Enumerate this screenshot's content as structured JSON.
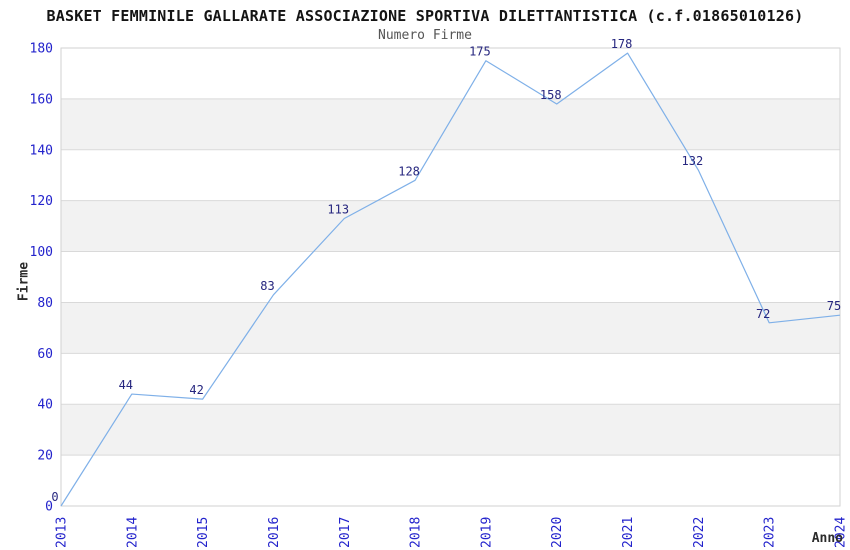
{
  "chart_data": {
    "type": "line",
    "title": "BASKET FEMMINILE GALLARATE ASSOCIAZIONE SPORTIVA DILETTANTISTICA (c.f.01865010126)",
    "subtitle": "Numero Firme",
    "xlabel": "Anno",
    "ylabel": "Firme",
    "categories": [
      "2013",
      "2014",
      "2015",
      "2016",
      "2017",
      "2018",
      "2019",
      "2020",
      "2021",
      "2022",
      "2023",
      "2024"
    ],
    "values": [
      0,
      44,
      42,
      83,
      113,
      128,
      175,
      158,
      178,
      132,
      72,
      75
    ],
    "data_labels": [
      "0",
      "44",
      "42",
      "83",
      "113",
      "128",
      "175",
      "158",
      "178",
      "132",
      "72",
      "75"
    ],
    "yticks": [
      0,
      20,
      40,
      60,
      80,
      100,
      120,
      140,
      160,
      180
    ],
    "ylim": [
      0,
      180
    ],
    "legend_position": "none",
    "grid": "alternating horizontal bands every 20 units",
    "colors": {
      "line": "#7fb0e8",
      "tick_label": "#2323cc",
      "data_label": "#26267f",
      "band_gray": "#f2f2f2",
      "grid_line": "#d9d9d9",
      "plot_border": "#d2d2d2",
      "title": "#141414",
      "subtitle": "#555555",
      "axis_label": "#2b2b2b",
      "background": "#ffffff"
    }
  }
}
